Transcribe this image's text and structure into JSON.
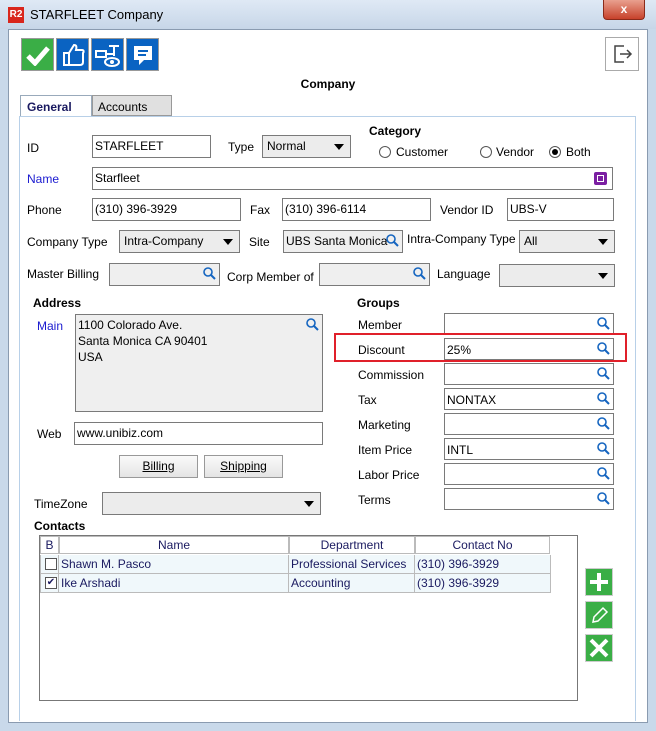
{
  "window": {
    "title": "STARFLEET Company",
    "logo": "R2",
    "close": "x"
  },
  "toolbar": {
    "icons": [
      "check-icon",
      "thumbs-up-icon",
      "preview-icon",
      "comment-icon"
    ],
    "exit_icon": "exit-icon"
  },
  "form_title": "Company",
  "tabs": [
    {
      "label": "General",
      "active": true
    },
    {
      "label": "Accounts",
      "active": false
    }
  ],
  "general": {
    "id": {
      "label": "ID",
      "value": "STARFLEET"
    },
    "type": {
      "label": "Type",
      "value": "Normal"
    },
    "category": {
      "label": "Category",
      "options": [
        "Customer",
        "Vendor",
        "Both"
      ],
      "selected": "Both"
    },
    "name": {
      "label": "Name",
      "value": "Starfleet"
    },
    "phone": {
      "label": "Phone",
      "value": "(310) 396-3929"
    },
    "fax": {
      "label": "Fax",
      "value": "(310) 396-6114"
    },
    "vendor_id": {
      "label": "Vendor ID",
      "value": "UBS-V"
    },
    "company_type": {
      "label": "Company Type",
      "value": "Intra-Company"
    },
    "site": {
      "label": "Site",
      "value": "UBS Santa Monica"
    },
    "intra_company_type": {
      "label": "Intra-Company Type",
      "value": "All"
    },
    "master_billing": {
      "label": "Master Billing",
      "value": ""
    },
    "corp_member_of": {
      "label": "Corp Member of",
      "value": ""
    },
    "language": {
      "label": "Language",
      "value": ""
    },
    "address": {
      "label": "Address",
      "main_label": "Main",
      "lines": [
        "1100 Colorado Ave.",
        "Santa Monica CA 90401",
        "USA"
      ]
    },
    "web": {
      "label": "Web",
      "value": "www.unibiz.com"
    },
    "billing_button": "Billing",
    "shipping_button": "Shipping",
    "timezone": {
      "label": "TimeZone",
      "value": ""
    },
    "groups": {
      "label": "Groups",
      "items": [
        {
          "label": "Member",
          "value": ""
        },
        {
          "label": "Discount",
          "value": "25%",
          "highlighted": true
        },
        {
          "label": "Commission",
          "value": ""
        },
        {
          "label": "Tax",
          "value": "NONTAX"
        },
        {
          "label": "Marketing",
          "value": ""
        },
        {
          "label": "Item Price",
          "value": "INTL"
        },
        {
          "label": "Labor Price",
          "value": ""
        },
        {
          "label": "Terms",
          "value": ""
        }
      ]
    },
    "contacts": {
      "label": "Contacts",
      "columns": [
        "B",
        "Name",
        "Department",
        "Contact No"
      ],
      "rows": [
        {
          "b": false,
          "name": "Shawn M. Pasco",
          "department": "Professional Services",
          "contact": "(310) 396-3929"
        },
        {
          "b": true,
          "name": "Ike Arshadi",
          "department": "Accounting",
          "contact": "(310) 396-3929"
        }
      ]
    }
  },
  "colors": {
    "accent_green": "#3aae46",
    "toolbar_blue": "#0a63c2",
    "highlight_red": "#e0202a",
    "link_blue": "#1a1ad0"
  }
}
